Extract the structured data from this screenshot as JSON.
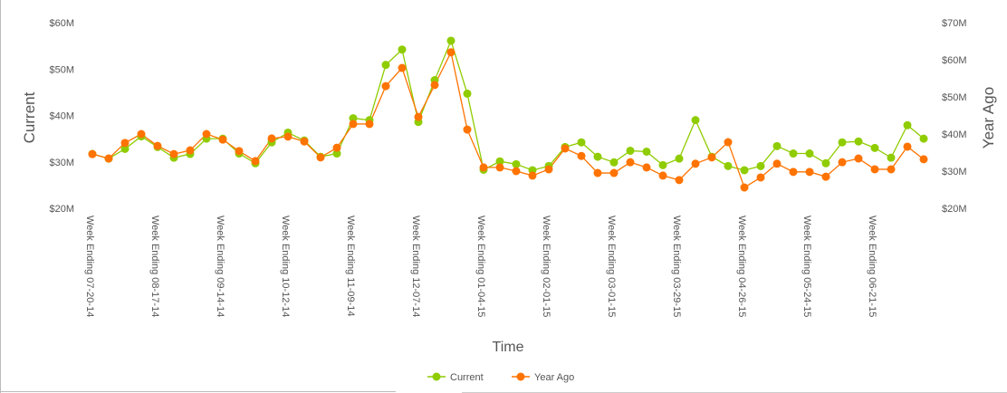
{
  "chart_data": {
    "type": "line",
    "title": "",
    "xlabel": "Time",
    "ylabel_left": "Current",
    "ylabel_right": "Year Ago",
    "left_axis": {
      "ylim": [
        20,
        60
      ],
      "ticks": [
        "$20M",
        "$30M",
        "$40M",
        "$50M",
        "$60M"
      ],
      "tick_values": [
        20,
        30,
        40,
        50,
        60
      ]
    },
    "right_axis": {
      "ylim": [
        20,
        70
      ],
      "ticks": [
        "$20M",
        "$30M",
        "$40M",
        "$50M",
        "$60M",
        "$70M"
      ],
      "tick_values": [
        20,
        30,
        40,
        50,
        60,
        70
      ]
    },
    "x_tick_labels": [
      "Week Ending 07-20-14",
      "Week Ending 08-17-14",
      "Week Ending 09-14-14",
      "Week Ending 10-12-14",
      "Week Ending 11-09-14",
      "Week Ending 12-07-14",
      "Week Ending 01-04-15",
      "Week Ending 02-01-15",
      "Week Ending 03-01-15",
      "Week Ending 03-29-15",
      "Week Ending 04-26-15",
      "Week Ending 05-24-15",
      "Week Ending 06-21-15"
    ],
    "x_tick_every": 4,
    "grid": false,
    "legend_position": "bottom-center",
    "series": [
      {
        "name": "Current",
        "axis": "left",
        "color": "#8fcc00",
        "values": [
          31.7,
          30.7,
          32.8,
          35.5,
          33.2,
          30.9,
          31.7,
          35.0,
          35.0,
          31.8,
          29.7,
          34.2,
          36.3,
          34.6,
          31.1,
          31.8,
          39.4,
          39.0,
          50.9,
          54.2,
          38.6,
          47.6,
          56.1,
          44.7,
          28.3,
          30.1,
          29.5,
          28.2,
          29.1,
          33.2,
          34.2,
          31.1,
          29.9,
          32.4,
          32.2,
          29.3,
          30.7,
          39.0,
          31.1,
          29.1,
          28.2,
          29.1,
          33.4,
          31.8,
          31.8,
          29.7,
          34.2,
          34.4,
          33.0,
          30.9,
          37.9,
          35.0
        ]
      },
      {
        "name": "Year Ago",
        "axis": "right",
        "color": "#ff7300",
        "values": [
          34.6,
          33.4,
          37.6,
          40.0,
          36.8,
          34.6,
          35.6,
          40.0,
          38.5,
          35.4,
          32.7,
          38.8,
          39.3,
          38.0,
          33.7,
          36.3,
          42.7,
          42.7,
          52.9,
          57.8,
          44.6,
          53.2,
          62.0,
          41.2,
          31.0,
          31.0,
          30.0,
          28.8,
          30.5,
          36.1,
          34.1,
          29.5,
          29.5,
          32.4,
          31.0,
          28.8,
          27.6,
          32.0,
          33.7,
          37.8,
          25.6,
          28.3,
          32.0,
          29.8,
          29.8,
          28.5,
          32.4,
          33.4,
          30.5,
          30.5,
          36.6,
          33.2
        ]
      }
    ]
  }
}
